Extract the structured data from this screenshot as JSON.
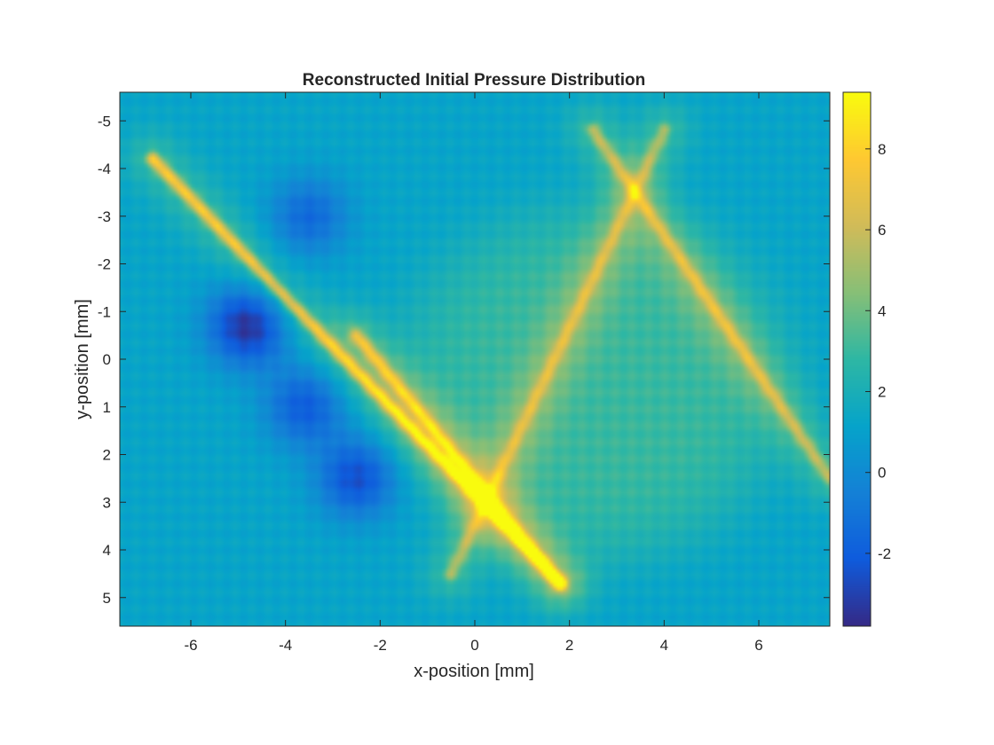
{
  "chart_data": {
    "type": "heatmap",
    "title": "Reconstructed Initial Pressure Distribution",
    "xlabel": "x-position [mm]",
    "ylabel": "y-position [mm]",
    "xlim": [
      -7.5,
      7.5
    ],
    "ylim": [
      -5.6,
      5.6
    ],
    "y_axis_direction": "reversed",
    "xticks": [
      -6,
      -4,
      -2,
      0,
      2,
      4,
      6
    ],
    "xtick_labels": [
      "-6",
      "-4",
      "-2",
      "0",
      "2",
      "4",
      "6"
    ],
    "yticks": [
      -5,
      -4,
      -3,
      -2,
      -1,
      0,
      1,
      2,
      3,
      4,
      5
    ],
    "ytick_labels": [
      "-5",
      "-4",
      "-3",
      "-2",
      "-1",
      "0",
      "1",
      "2",
      "3",
      "4",
      "5"
    ],
    "colorbar": {
      "colormap": "parula",
      "clim": [
        -3.8,
        9.4
      ],
      "ticks": [
        -2,
        0,
        2,
        4,
        6,
        8
      ],
      "tick_labels": [
        "-2",
        "0",
        "2",
        "4",
        "6",
        "8"
      ],
      "colors": [
        "#352a87",
        "#0f5cdd",
        "#1481d6",
        "#06a4ca",
        "#2eb7a4",
        "#87bf77",
        "#d1bb59",
        "#fec832",
        "#f9fb0e"
      ]
    },
    "features": {
      "background_level": 1.2,
      "plateau": {
        "center": [
          2.5,
          0.5
        ],
        "level": 3.0
      },
      "ridges": [
        {
          "from": [
            -6.8,
            -4.2
          ],
          "to": [
            1.8,
            4.7
          ],
          "peak": 8.0
        },
        {
          "from": [
            -2.5,
            -0.5
          ],
          "to": [
            1.8,
            4.7
          ],
          "peak": 7.0
        },
        {
          "from": [
            -0.5,
            4.5
          ],
          "to": [
            4.0,
            -4.8
          ],
          "peak": 5.5
        },
        {
          "from": [
            2.5,
            -4.8
          ],
          "to": [
            7.5,
            2.5
          ],
          "peak": 6.0
        }
      ],
      "troughs": [
        {
          "center": [
            -4.8,
            -0.7
          ],
          "level": -3.5
        },
        {
          "center": [
            -3.5,
            -3.0
          ],
          "level": -1.5
        },
        {
          "center": [
            -2.5,
            2.5
          ],
          "level": -2.5
        },
        {
          "center": [
            -3.6,
            1.0
          ],
          "level": -2.0
        }
      ]
    }
  }
}
